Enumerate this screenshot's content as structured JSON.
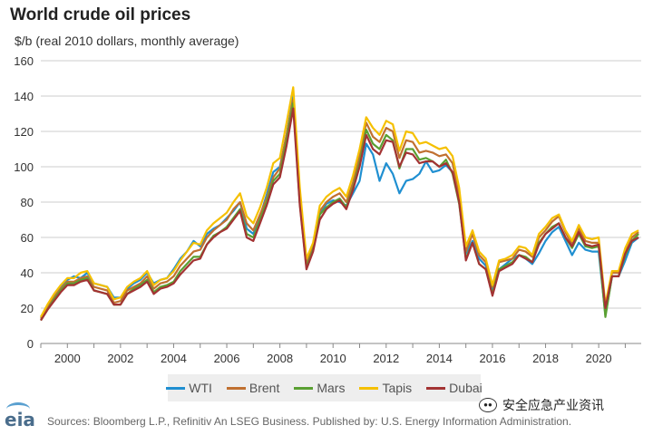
{
  "chart_data": {
    "type": "line",
    "title": "World crude oil prices",
    "ylabel": "$/b (real 2010 dollars, monthly average)",
    "xlabel": "",
    "ylim": [
      0,
      160
    ],
    "xlim": [
      1999,
      2021.6
    ],
    "y_ticks": [
      0,
      20,
      40,
      60,
      80,
      100,
      120,
      140,
      160
    ],
    "x_ticks": [
      2000,
      2002,
      2004,
      2006,
      2008,
      2010,
      2012,
      2014,
      2016,
      2018,
      2020
    ],
    "grid": true,
    "legend_position": "bottom",
    "x": [
      1999.0,
      1999.25,
      1999.5,
      1999.75,
      2000.0,
      2000.25,
      2000.5,
      2000.75,
      2001.0,
      2001.25,
      2001.5,
      2001.75,
      2002.0,
      2002.25,
      2002.5,
      2002.75,
      2003.0,
      2003.25,
      2003.5,
      2003.75,
      2004.0,
      2004.25,
      2004.5,
      2004.75,
      2005.0,
      2005.25,
      2005.5,
      2005.75,
      2006.0,
      2006.25,
      2006.5,
      2006.75,
      2007.0,
      2007.25,
      2007.5,
      2007.75,
      2008.0,
      2008.25,
      2008.5,
      2008.75,
      2009.0,
      2009.25,
      2009.5,
      2009.75,
      2010.0,
      2010.25,
      2010.5,
      2010.75,
      2011.0,
      2011.25,
      2011.5,
      2011.75,
      2012.0,
      2012.25,
      2012.5,
      2012.75,
      2013.0,
      2013.25,
      2013.5,
      2013.75,
      2014.0,
      2014.25,
      2014.5,
      2014.75,
      2015.0,
      2015.25,
      2015.5,
      2015.75,
      2016.0,
      2016.25,
      2016.5,
      2016.75,
      2017.0,
      2017.25,
      2017.5,
      2017.75,
      2018.0,
      2018.25,
      2018.5,
      2018.75,
      2019.0,
      2019.25,
      2019.5,
      2019.75,
      2020.0,
      2020.25,
      2020.5,
      2020.75,
      2021.0,
      2021.25,
      2021.5
    ],
    "series": [
      {
        "name": "WTI",
        "color": "#1f8fd1",
        "values": [
          15,
          21,
          27,
          32,
          36,
          38,
          37,
          40,
          34,
          33,
          32,
          26,
          26,
          31,
          34,
          36,
          40,
          34,
          36,
          37,
          42,
          48,
          52,
          58,
          55,
          62,
          65,
          67,
          71,
          75,
          80,
          65,
          62,
          72,
          84,
          97,
          100,
          118,
          140,
          85,
          45,
          53,
          73,
          79,
          81,
          80,
          78,
          85,
          92,
          113,
          107,
          92,
          102,
          96,
          85,
          92,
          93,
          96,
          103,
          97,
          98,
          101,
          97,
          80,
          51,
          58,
          48,
          44,
          30,
          42,
          45,
          48,
          50,
          48,
          45,
          51,
          58,
          63,
          66,
          58,
          50,
          57,
          53,
          52,
          52,
          16,
          38,
          38,
          47,
          57,
          60
        ]
      },
      {
        "name": "Brent",
        "color": "#c07030",
        "values": [
          14,
          20,
          26,
          31,
          35,
          35,
          37,
          38,
          32,
          31,
          30,
          23,
          24,
          30,
          32,
          34,
          38,
          31,
          34,
          35,
          38,
          44,
          48,
          52,
          53,
          60,
          64,
          67,
          70,
          76,
          80,
          68,
          64,
          73,
          82,
          94,
          99,
          118,
          138,
          80,
          45,
          55,
          75,
          80,
          83,
          85,
          80,
          91,
          106,
          125,
          117,
          114,
          122,
          120,
          105,
          115,
          114,
          108,
          109,
          108,
          106,
          107,
          102,
          85,
          52,
          62,
          50,
          46,
          32,
          46,
          47,
          48,
          53,
          52,
          49,
          60,
          64,
          69,
          72,
          63,
          56,
          65,
          58,
          57,
          57,
          18,
          40,
          40,
          52,
          60,
          63
        ]
      },
      {
        "name": "Mars",
        "color": "#5aa032",
        "values": [
          13,
          19,
          25,
          30,
          34,
          34,
          36,
          37,
          30,
          29,
          28,
          22,
          22,
          28,
          31,
          33,
          36,
          29,
          32,
          33,
          35,
          41,
          45,
          49,
          49,
          56,
          61,
          63,
          66,
          71,
          76,
          62,
          60,
          70,
          80,
          92,
          96,
          115,
          136,
          79,
          43,
          53,
          73,
          77,
          80,
          82,
          77,
          88,
          102,
          121,
          113,
          110,
          118,
          115,
          99,
          110,
          110,
          104,
          105,
          103,
          100,
          104,
          96,
          79,
          48,
          57,
          45,
          42,
          28,
          42,
          44,
          46,
          50,
          49,
          46,
          57,
          62,
          66,
          68,
          60,
          54,
          62,
          55,
          54,
          55,
          15,
          38,
          38,
          50,
          58,
          62
        ]
      },
      {
        "name": "Tapis",
        "color": "#f5c000",
        "values": [
          15,
          22,
          28,
          33,
          37,
          37,
          40,
          41,
          34,
          33,
          32,
          25,
          26,
          32,
          35,
          37,
          41,
          33,
          36,
          37,
          41,
          47,
          52,
          57,
          56,
          64,
          68,
          71,
          74,
          80,
          85,
          72,
          68,
          77,
          88,
          102,
          105,
          125,
          145,
          88,
          48,
          57,
          78,
          83,
          86,
          88,
          83,
          95,
          110,
          128,
          122,
          118,
          126,
          124,
          109,
          120,
          119,
          113,
          114,
          112,
          110,
          111,
          106,
          88,
          55,
          64,
          52,
          48,
          33,
          47,
          48,
          50,
          55,
          54,
          50,
          62,
          66,
          71,
          73,
          64,
          58,
          67,
          60,
          59,
          60,
          22,
          41,
          41,
          54,
          62,
          64
        ]
      },
      {
        "name": "Dubai",
        "color": "#a33333",
        "values": [
          13,
          19,
          24,
          29,
          33,
          33,
          35,
          36,
          30,
          29,
          28,
          22,
          22,
          28,
          30,
          32,
          35,
          28,
          31,
          32,
          34,
          39,
          43,
          47,
          48,
          56,
          60,
          63,
          65,
          70,
          75,
          60,
          58,
          68,
          78,
          90,
          94,
          112,
          133,
          78,
          42,
          52,
          70,
          76,
          79,
          81,
          76,
          87,
          100,
          118,
          110,
          107,
          115,
          114,
          100,
          108,
          107,
          102,
          103,
          103,
          100,
          102,
          97,
          80,
          47,
          57,
          45,
          42,
          27,
          41,
          43,
          45,
          50,
          48,
          46,
          56,
          62,
          65,
          68,
          60,
          55,
          63,
          56,
          55,
          56,
          20,
          38,
          38,
          51,
          58,
          60
        ]
      }
    ]
  },
  "chrome": {
    "source": "Sources: Bloomberg L.P., Refinitiv An LSEG Business. Published by: U.S. Energy Information Administration.",
    "logo_text": "eia",
    "watermark": "安全应急产业资讯"
  }
}
